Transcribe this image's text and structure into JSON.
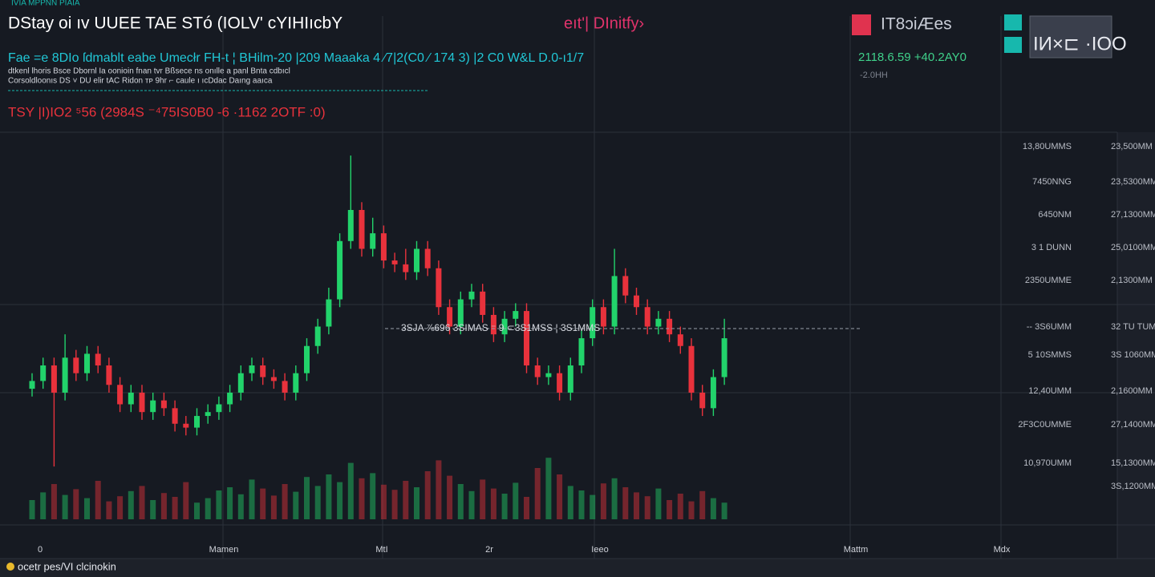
{
  "header": {
    "title": "DStay oi ıv UUEE TAE STó (IOLV' cYIHIıcbY",
    "center_label": "eıt'| DInitfy›",
    "top_right_label": "IT8ɔiÆes",
    "top_right_box": "IИ×⊏ ·IOO",
    "top_mini": "IVIA MPPNN PIAIA",
    "info_line": "Fae =e 8DIo ſdmablt eabe Umecłr FH-t ¦ BHilm-20   |209 Maaaka 4 ⁄7|2(C0 ⁄ 174 3)   |2 C0 W&L D.0-ı1/7",
    "info_right": "2118.6.59 +40.2AY0",
    "info_right_sub": "-2.0HH",
    "small_line_1": "dtkenl lhoris Bsce Dbornl  Ia oonioin  fnan tvr Bßsece ns  onılle a panl  Bnta cdbıcl",
    "small_line_2": "Corsoldloonıs  DS     ˅    DU elir tAC Ridon  ᴛᴘ  9hr ⌐ caule ı  ıcDdac  Daıng  aaıca",
    "red_line": "TSY |I)IO2 ⁵56 (2984S ⁻⁴75IS0B0 -6 ·1162 2OTF :0)",
    "footer": "ocetr pes/VI clcinokin"
  },
  "chart_data": {
    "type": "candlestick",
    "ylim": [
      0,
      100
    ],
    "vlim": [
      0,
      100
    ],
    "up_color": "#22d36b",
    "down_color": "#e8323c",
    "open": [
      34,
      36,
      40,
      33,
      42,
      38,
      43,
      40,
      35,
      30,
      33,
      28,
      31,
      29,
      25,
      24,
      27,
      28,
      30,
      33,
      38,
      40,
      37,
      36,
      33,
      38,
      45,
      50,
      57,
      72,
      80,
      70,
      74,
      67,
      66,
      64,
      70,
      65,
      55,
      50,
      57,
      59,
      53,
      48,
      52,
      54,
      40,
      37,
      38,
      33,
      40,
      47,
      55,
      50,
      63,
      58,
      55,
      50,
      52,
      48,
      45,
      33,
      29,
      37
    ],
    "high": [
      38,
      42,
      42,
      48,
      44,
      45,
      45,
      42,
      37,
      35,
      35,
      33,
      33,
      31,
      27,
      29,
      30,
      32,
      35,
      40,
      42,
      42,
      39,
      38,
      40,
      47,
      52,
      60,
      74,
      94,
      82,
      78,
      76,
      69,
      70,
      72,
      72,
      67,
      57,
      59,
      61,
      61,
      55,
      54,
      56,
      56,
      42,
      40,
      40,
      42,
      49,
      57,
      57,
      70,
      65,
      60,
      57,
      54,
      54,
      50,
      47,
      35,
      39,
      52
    ],
    "low": [
      32,
      34,
      14,
      31,
      36,
      36,
      38,
      33,
      28,
      28,
      26,
      26,
      27,
      23,
      22,
      22,
      25,
      26,
      28,
      31,
      36,
      35,
      34,
      31,
      31,
      36,
      43,
      48,
      55,
      70,
      68,
      68,
      65,
      64,
      62,
      62,
      63,
      53,
      48,
      48,
      55,
      51,
      46,
      46,
      50,
      38,
      35,
      35,
      31,
      31,
      38,
      45,
      48,
      48,
      56,
      53,
      48,
      48,
      46,
      43,
      31,
      27,
      27,
      35
    ],
    "close": [
      36,
      40,
      33,
      42,
      38,
      43,
      40,
      35,
      30,
      33,
      28,
      31,
      29,
      25,
      24,
      27,
      28,
      30,
      33,
      38,
      40,
      37,
      36,
      33,
      38,
      45,
      50,
      57,
      72,
      80,
      70,
      74,
      67,
      66,
      64,
      70,
      65,
      55,
      50,
      57,
      59,
      53,
      48,
      52,
      54,
      40,
      37,
      38,
      33,
      40,
      47,
      55,
      50,
      63,
      58,
      55,
      50,
      52,
      48,
      45,
      33,
      29,
      37,
      47
    ],
    "volume": [
      30,
      42,
      55,
      38,
      47,
      33,
      60,
      28,
      36,
      44,
      52,
      30,
      41,
      35,
      58,
      26,
      33,
      45,
      50,
      39,
      62,
      48,
      37,
      55,
      43,
      66,
      52,
      70,
      58,
      88,
      64,
      72,
      54,
      46,
      60,
      50,
      75,
      92,
      68,
      55,
      44,
      62,
      48,
      40,
      57,
      35,
      80,
      96,
      70,
      52,
      45,
      38,
      56,
      64,
      50,
      42,
      36,
      48,
      30,
      40,
      28,
      44,
      33,
      26
    ],
    "right_labels_inner": [
      "13,80UMMS",
      "7450NNG",
      "6450NM",
      "3 1 DUNN",
      "2350UMME",
      "-- 3S6UMM",
      "5 10SMMS",
      "12,40UMM",
      "2F3C0UMME",
      "10,970UMM"
    ],
    "right_labels_outer": [
      "23,500MM",
      "23,5300MM",
      "27,1300MM",
      "25,0100MM",
      "2,1300MM",
      "32 TU TUM",
      "3S 1060MM",
      "2,1600MM",
      "27,1400MM",
      "15,1300MM",
      "3S,1200MM"
    ],
    "price_line_label": "3SJA   ⅞696  3SIMAS  ⁻  9  ⊂3S1MSS  ¦  3S1MMS",
    "x_labels": [
      "0",
      "Mamen",
      "MtI",
      "2r",
      "Ieeo",
      "Mattm",
      "Mdx"
    ]
  }
}
